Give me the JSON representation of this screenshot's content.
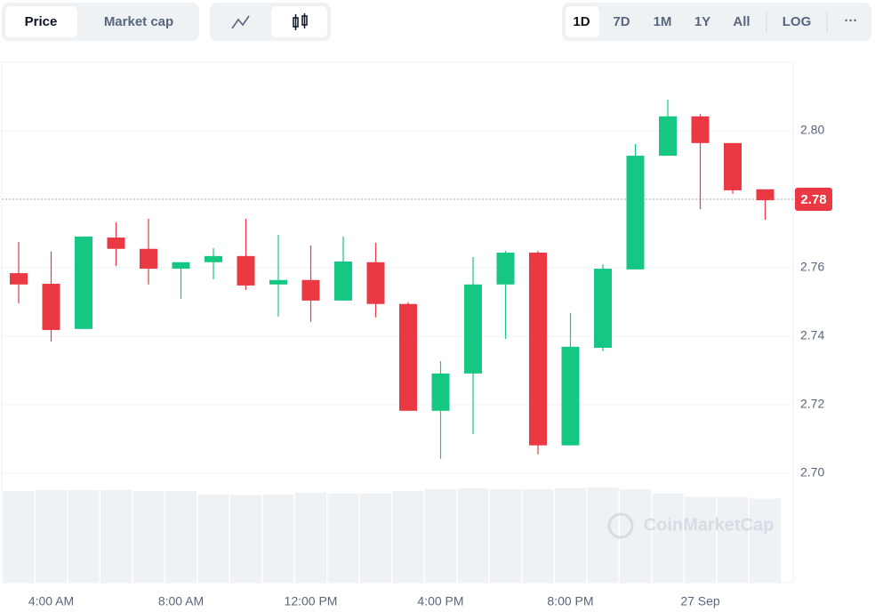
{
  "toolbar": {
    "price": "Price",
    "market_cap": "Market cap",
    "ranges": [
      "1D",
      "7D",
      "1M",
      "1Y",
      "All"
    ],
    "log": "LOG",
    "more": "···"
  },
  "watermark": "CoinMarketCap",
  "chart_data": {
    "type": "candlestick",
    "categories": [
      null,
      "4:00 AM",
      null,
      null,
      null,
      "8:00 AM",
      null,
      null,
      null,
      "12:00 PM",
      null,
      null,
      null,
      "4:00 PM",
      null,
      null,
      null,
      "8:00 PM",
      null,
      null,
      null,
      "27 Sep",
      null,
      null
    ],
    "open": [
      2.7584,
      2.7553,
      2.7421,
      2.7688,
      2.7655,
      2.7597,
      2.7616,
      2.7634,
      2.7551,
      2.7564,
      2.7504,
      2.7616,
      2.7494,
      2.7182,
      2.7291,
      2.7551,
      2.7644,
      2.7081,
      2.7366,
      2.7595,
      2.7927,
      2.8042,
      2.7964,
      2.7829
    ],
    "high": [
      2.7675,
      2.7647,
      2.7691,
      2.7732,
      2.7743,
      2.7616,
      2.7657,
      2.7743,
      2.7696,
      2.7665,
      2.7691,
      2.7673,
      2.7499,
      2.7327,
      2.7631,
      2.7649,
      2.7649,
      2.7468,
      2.761,
      2.7961,
      2.8091,
      2.8049,
      2.7964,
      2.7829
    ],
    "low": [
      2.7496,
      2.7384,
      2.7421,
      2.7605,
      2.7551,
      2.7509,
      2.7566,
      2.7535,
      2.7457,
      2.7442,
      2.7504,
      2.7455,
      2.7182,
      2.7042,
      2.7114,
      2.7392,
      2.7055,
      2.7081,
      2.7356,
      2.7595,
      2.7927,
      2.7771,
      2.7816,
      2.774
    ],
    "close": [
      2.7551,
      2.7418,
      2.7691,
      2.7655,
      2.7597,
      2.7616,
      2.7634,
      2.7548,
      2.7564,
      2.7504,
      2.7618,
      2.7494,
      2.7182,
      2.7291,
      2.7551,
      2.7644,
      2.7081,
      2.7369,
      2.7597,
      2.7927,
      2.8042,
      2.7964,
      2.7826,
      2.7797
    ],
    "volume": [
      107,
      108,
      108,
      108,
      107,
      107,
      103,
      102,
      103,
      105,
      104,
      104,
      107,
      109,
      110,
      109,
      109,
      110,
      111,
      109,
      104,
      100,
      100,
      98
    ],
    "up_color": "#16c784",
    "down_color": "#ea3943",
    "volume_color": "#eff2f5",
    "ylim": [
      2.668,
      2.82
    ],
    "yticks": [
      {
        "value": 2.7,
        "label": "2.70"
      },
      2.72,
      2.74,
      2.76,
      2.78,
      {
        "value": 2.8,
        "label": "2.80"
      }
    ],
    "current_price": 2.78,
    "grid": true
  }
}
